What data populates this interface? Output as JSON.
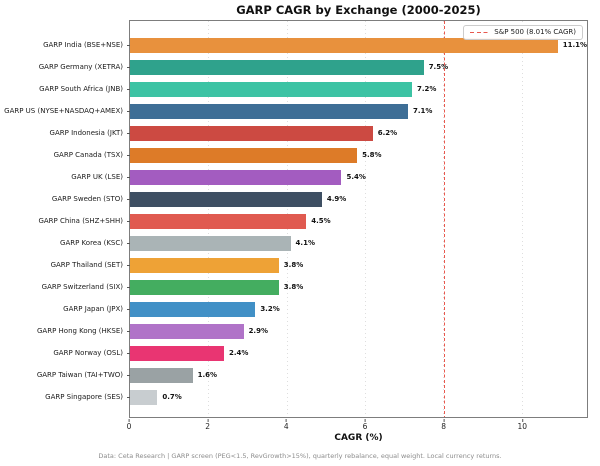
{
  "title": "GARP CAGR by Exchange (2000-2025)",
  "xlabel": "CAGR (%)",
  "footer": "Data: Ceta Research | GARP screen (PEG<1.5, RevGrowth>15%), quarterly rebalance, equal weight. Local currency returns.",
  "legend": {
    "label": "S&P 500 (8.01% CAGR)",
    "line_color": "#e8584e",
    "position": "upper right"
  },
  "chart_data": {
    "type": "bar",
    "orientation": "horizontal",
    "title": "GARP CAGR by Exchange (2000-2025)",
    "xlabel": "CAGR (%)",
    "ylabel": "",
    "xlim": [
      0,
      11.67
    ],
    "xticks": [
      0,
      2,
      4,
      6,
      8,
      10
    ],
    "grid": "vertical dotted",
    "legend_position": "upper right",
    "reference_line": {
      "value": 8.01,
      "label": "S&P 500 (8.01% CAGR)",
      "style": "dashed",
      "color": "#e8584e"
    },
    "categories": [
      "GARP India (BSE+NSE)",
      "GARP Germany (XETRA)",
      "GARP South Africa (JNB)",
      "GARP US (NYSE+NASDAQ+AMEX)",
      "GARP Indonesia (JKT)",
      "GARP Canada (TSX)",
      "GARP UK (LSE)",
      "GARP Sweden (STO)",
      "GARP China (SHZ+SHH)",
      "GARP Korea (KSC)",
      "GARP Thailand (SET)",
      "GARP Switzerland (SIX)",
      "GARP Japan (JPX)",
      "GARP Hong Kong (HKSE)",
      "GARP Norway (OSL)",
      "GARP Taiwan (TAI+TWO)",
      "GARP Singapore (SES)"
    ],
    "values": [
      11.1,
      7.5,
      7.2,
      7.1,
      6.2,
      5.8,
      5.4,
      4.9,
      4.5,
      4.1,
      3.8,
      3.8,
      3.2,
      2.9,
      2.4,
      1.6,
      0.7
    ],
    "value_labels": [
      "11.1%",
      "7.5%",
      "7.2%",
      "7.1%",
      "6.2%",
      "5.8%",
      "5.4%",
      "4.9%",
      "4.5%",
      "4.1%",
      "3.8%",
      "3.8%",
      "3.2%",
      "2.9%",
      "2.4%",
      "1.6%",
      "0.7%"
    ],
    "bar_colors": [
      "#e8913d",
      "#2fa28c",
      "#3cc3a4",
      "#3e6e96",
      "#cc4a42",
      "#dd7b28",
      "#a35cc0",
      "#3e4f63",
      "#e05a50",
      "#aab4b6",
      "#eea236",
      "#44ad60",
      "#4190c6",
      "#b073c8",
      "#e93572",
      "#9aa2a4",
      "#c8cdd0"
    ]
  }
}
